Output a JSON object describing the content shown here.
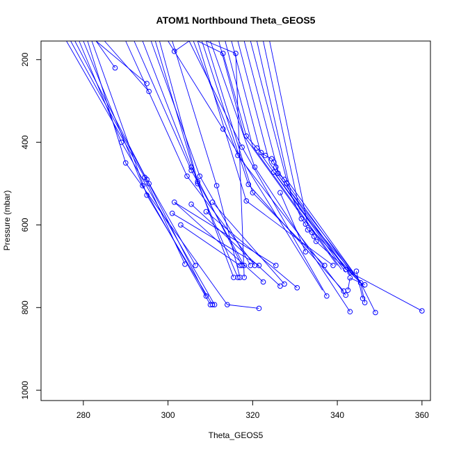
{
  "chart_data": {
    "type": "line",
    "title": "ATOM1 Northbound Theta_GEOS5",
    "xlabel": "Theta_GEOS5",
    "ylabel": "Pressure (mbar)",
    "xlim": [
      270,
      362
    ],
    "ylim": [
      1025,
      155
    ],
    "y_axis_inverted": true,
    "x_ticks": [
      280,
      300,
      320,
      340,
      360
    ],
    "y_ticks": [
      200,
      400,
      600,
      800,
      1000
    ],
    "line_color": "#0000ff",
    "marker": "open-circle",
    "grid": false,
    "legend": "none",
    "points": [
      [
        301.5,
        180
      ],
      [
        313,
        185
      ],
      [
        287.5,
        220
      ],
      [
        295,
        258
      ],
      [
        295.5,
        277
      ],
      [
        289,
        400
      ],
      [
        290,
        450
      ],
      [
        305.5,
        460
      ],
      [
        305.5,
        468
      ],
      [
        307.5,
        482
      ],
      [
        304.5,
        482
      ],
      [
        307,
        495
      ],
      [
        307,
        500
      ],
      [
        311.5,
        505
      ],
      [
        301.5,
        545
      ],
      [
        305.5,
        550
      ],
      [
        310.5,
        545
      ],
      [
        309,
        568
      ],
      [
        301,
        572
      ],
      [
        303,
        600
      ],
      [
        294.5,
        485
      ],
      [
        295,
        490
      ],
      [
        295.5,
        500
      ],
      [
        294,
        505
      ],
      [
        295,
        528
      ],
      [
        304,
        695
      ],
      [
        306.5,
        698
      ],
      [
        309,
        772
      ],
      [
        310,
        793
      ],
      [
        310.5,
        793
      ],
      [
        311,
        793
      ],
      [
        314,
        793
      ],
      [
        321.5,
        802
      ],
      [
        317,
        698
      ],
      [
        317.5,
        698
      ],
      [
        318,
        698
      ],
      [
        319.5,
        698
      ],
      [
        320.5,
        698
      ],
      [
        321.5,
        698
      ],
      [
        315.5,
        727
      ],
      [
        316.5,
        727
      ],
      [
        317,
        727
      ],
      [
        318,
        727
      ],
      [
        322.5,
        738
      ],
      [
        326.5,
        748
      ],
      [
        327.5,
        743
      ],
      [
        330.5,
        752
      ],
      [
        325.5,
        698
      ],
      [
        316,
        185
      ],
      [
        317.5,
        412
      ],
      [
        316.5,
        432
      ],
      [
        320.5,
        460
      ],
      [
        319,
        502
      ],
      [
        320,
        522
      ],
      [
        318.5,
        542
      ],
      [
        313,
        368
      ],
      [
        318.5,
        385
      ],
      [
        321,
        414
      ],
      [
        322,
        425
      ],
      [
        323,
        432
      ],
      [
        324.5,
        440
      ],
      [
        325,
        448
      ],
      [
        325.5,
        460
      ],
      [
        326,
        475
      ],
      [
        325,
        472
      ],
      [
        327.5,
        490
      ],
      [
        328,
        500
      ],
      [
        326.5,
        522
      ],
      [
        331.5,
        585
      ],
      [
        332.5,
        598
      ],
      [
        333,
        612
      ],
      [
        334,
        618
      ],
      [
        334.5,
        628
      ],
      [
        335,
        640
      ],
      [
        332.5,
        665
      ],
      [
        337,
        698
      ],
      [
        339,
        698
      ],
      [
        342,
        708
      ],
      [
        343,
        715
      ],
      [
        344.5,
        712
      ],
      [
        343,
        728
      ],
      [
        345.5,
        740
      ],
      [
        346.5,
        745
      ],
      [
        341.5,
        760
      ],
      [
        342.5,
        758
      ],
      [
        346,
        778
      ],
      [
        346.5,
        788
      ],
      [
        337.5,
        772
      ],
      [
        342,
        770
      ],
      [
        343,
        810
      ],
      [
        349,
        812
      ],
      [
        360,
        808
      ]
    ],
    "segments": [
      [
        [
          283,
          155
        ],
        [
          287.5,
          220
        ]
      ],
      [
        [
          283,
          155
        ],
        [
          295,
          258
        ]
      ],
      [
        [
          285,
          155
        ],
        [
          295.5,
          277
        ]
      ],
      [
        [
          279,
          155
        ],
        [
          289,
          400
        ]
      ],
      [
        [
          281,
          155
        ],
        [
          290,
          450
        ]
      ],
      [
        [
          294,
          155
        ],
        [
          305.5,
          460
        ]
      ],
      [
        [
          292,
          155
        ],
        [
          305.5,
          468
        ]
      ],
      [
        [
          296,
          155
        ],
        [
          307.5,
          482
        ]
      ],
      [
        [
          290,
          155
        ],
        [
          304.5,
          482
        ]
      ],
      [
        [
          298,
          155
        ],
        [
          307,
          495
        ]
      ],
      [
        [
          297,
          155
        ],
        [
          307,
          500
        ]
      ],
      [
        [
          301,
          155
        ],
        [
          311.5,
          505
        ]
      ],
      [
        [
          300,
          155
        ],
        [
          313,
          368
        ]
      ],
      [
        [
          305,
          155
        ],
        [
          301.5,
          180
        ]
      ],
      [
        [
          307,
          155
        ],
        [
          313,
          185
        ]
      ],
      [
        [
          309,
          155
        ],
        [
          316,
          185
        ]
      ],
      [
        [
          276,
          155
        ],
        [
          294.5,
          485
        ]
      ],
      [
        [
          277,
          155
        ],
        [
          295,
          490
        ]
      ],
      [
        [
          278,
          155
        ],
        [
          295.5,
          500
        ]
      ],
      [
        [
          280,
          155
        ],
        [
          294,
          505
        ]
      ],
      [
        [
          282,
          155
        ],
        [
          295,
          528
        ]
      ],
      [
        [
          305,
          155
        ],
        [
          317.5,
          412
        ]
      ],
      [
        [
          306,
          155
        ],
        [
          316.5,
          432
        ]
      ],
      [
        [
          310,
          155
        ],
        [
          320.5,
          460
        ]
      ],
      [
        [
          308,
          155
        ],
        [
          319,
          502
        ]
      ],
      [
        [
          309,
          155
        ],
        [
          320,
          522
        ]
      ],
      [
        [
          307,
          155
        ],
        [
          318.5,
          542
        ]
      ],
      [
        [
          301.5,
          545
        ],
        [
          322.5,
          738
        ]
      ],
      [
        [
          305.5,
          550
        ],
        [
          326.5,
          748
        ]
      ],
      [
        [
          310.5,
          545
        ],
        [
          327.5,
          743
        ]
      ],
      [
        [
          309,
          568
        ],
        [
          330.5,
          752
        ]
      ],
      [
        [
          301,
          572
        ],
        [
          321.5,
          698
        ]
      ],
      [
        [
          303,
          600
        ],
        [
          317,
          698
        ]
      ],
      [
        [
          294.5,
          485
        ],
        [
          304,
          695
        ]
      ],
      [
        [
          295,
          490
        ],
        [
          306.5,
          698
        ]
      ],
      [
        [
          295.5,
          500
        ],
        [
          309,
          772
        ]
      ],
      [
        [
          294,
          505
        ],
        [
          310,
          793
        ]
      ],
      [
        [
          295,
          528
        ],
        [
          310.5,
          793
        ]
      ],
      [
        [
          305.5,
          460
        ],
        [
          317.5,
          698
        ]
      ],
      [
        [
          305.5,
          468
        ],
        [
          318,
          698
        ]
      ],
      [
        [
          307.5,
          482
        ],
        [
          319.5,
          698
        ]
      ],
      [
        [
          304.5,
          482
        ],
        [
          320.5,
          698
        ]
      ],
      [
        [
          307,
          495
        ],
        [
          315.5,
          727
        ]
      ],
      [
        [
          307,
          500
        ],
        [
          316.5,
          727
        ]
      ],
      [
        [
          311.5,
          505
        ],
        [
          317,
          727
        ]
      ],
      [
        [
          289,
          400
        ],
        [
          311,
          793
        ]
      ],
      [
        [
          290,
          450
        ],
        [
          314,
          793
        ]
      ],
      [
        [
          314,
          793
        ],
        [
          321.5,
          802
        ]
      ],
      [
        [
          301.5,
          545
        ],
        [
          325.5,
          698
        ]
      ],
      [
        [
          316,
          185
        ],
        [
          318,
          727
        ]
      ],
      [
        [
          313,
          368
        ],
        [
          336.5,
          758
        ]
      ],
      [
        [
          317.5,
          412
        ],
        [
          337.5,
          772
        ]
      ],
      [
        [
          316.5,
          432
        ],
        [
          342,
          770
        ]
      ],
      [
        [
          320.5,
          460
        ],
        [
          343,
          810
        ]
      ],
      [
        [
          319,
          502
        ],
        [
          341.5,
          760
        ]
      ],
      [
        [
          320,
          522
        ],
        [
          337,
          698
        ]
      ],
      [
        [
          318.5,
          542
        ],
        [
          339,
          698
        ]
      ],
      [
        [
          313,
          185
        ],
        [
          318.5,
          385
        ]
      ],
      [
        [
          318.5,
          385
        ],
        [
          321,
          414
        ]
      ],
      [
        [
          321,
          414
        ],
        [
          322,
          425
        ]
      ],
      [
        [
          322,
          425
        ],
        [
          323,
          432
        ]
      ],
      [
        [
          323,
          432
        ],
        [
          324.5,
          440
        ]
      ],
      [
        [
          324.5,
          440
        ],
        [
          325,
          448
        ]
      ],
      [
        [
          325,
          448
        ],
        [
          325.5,
          460
        ]
      ],
      [
        [
          325.5,
          460
        ],
        [
          326,
          475
        ]
      ],
      [
        [
          326,
          475
        ],
        [
          327.5,
          490
        ]
      ],
      [
        [
          327.5,
          490
        ],
        [
          328,
          500
        ]
      ],
      [
        [
          328,
          500
        ],
        [
          331.5,
          585
        ]
      ],
      [
        [
          331.5,
          585
        ],
        [
          332.5,
          598
        ]
      ],
      [
        [
          332.5,
          598
        ],
        [
          333,
          612
        ]
      ],
      [
        [
          333,
          612
        ],
        [
          334,
          618
        ]
      ],
      [
        [
          334,
          618
        ],
        [
          334.5,
          628
        ]
      ],
      [
        [
          334.5,
          628
        ],
        [
          335,
          640
        ]
      ],
      [
        [
          335,
          640
        ],
        [
          343,
          715
        ]
      ],
      [
        [
          343,
          715
        ],
        [
          345.5,
          740
        ]
      ],
      [
        [
          345.5,
          740
        ],
        [
          346.5,
          788
        ]
      ],
      [
        [
          343,
          715
        ],
        [
          360,
          808
        ]
      ],
      [
        [
          345.5,
          740
        ],
        [
          349,
          812
        ]
      ],
      [
        [
          326.5,
          522
        ],
        [
          332.5,
          665
        ]
      ],
      [
        [
          325,
          472
        ],
        [
          342,
          708
        ]
      ],
      [
        [
          344.5,
          712
        ],
        [
          346,
          778
        ]
      ],
      [
        [
          342.5,
          758
        ],
        [
          343,
          728
        ]
      ],
      [
        [
          343,
          728
        ],
        [
          346.5,
          745
        ]
      ]
    ],
    "bundles": {
      "tops": [
        312,
        313.5,
        315,
        316.5,
        318,
        319.5,
        321,
        322.5,
        324
      ],
      "mids": [
        [
          318,
          385
        ],
        [
          320,
          410
        ],
        [
          322,
          430
        ],
        [
          324,
          450
        ],
        [
          326,
          470
        ],
        [
          328,
          490
        ],
        [
          329,
          520
        ],
        [
          331,
          560
        ],
        [
          333,
          600
        ]
      ],
      "ends": [
        [
          340,
          698
        ],
        [
          341,
          708
        ],
        [
          342,
          715
        ],
        [
          343,
          720
        ],
        [
          344,
          725
        ],
        [
          345,
          732
        ],
        [
          345.5,
          738
        ],
        [
          346,
          745
        ],
        [
          346.5,
          752
        ]
      ]
    }
  }
}
